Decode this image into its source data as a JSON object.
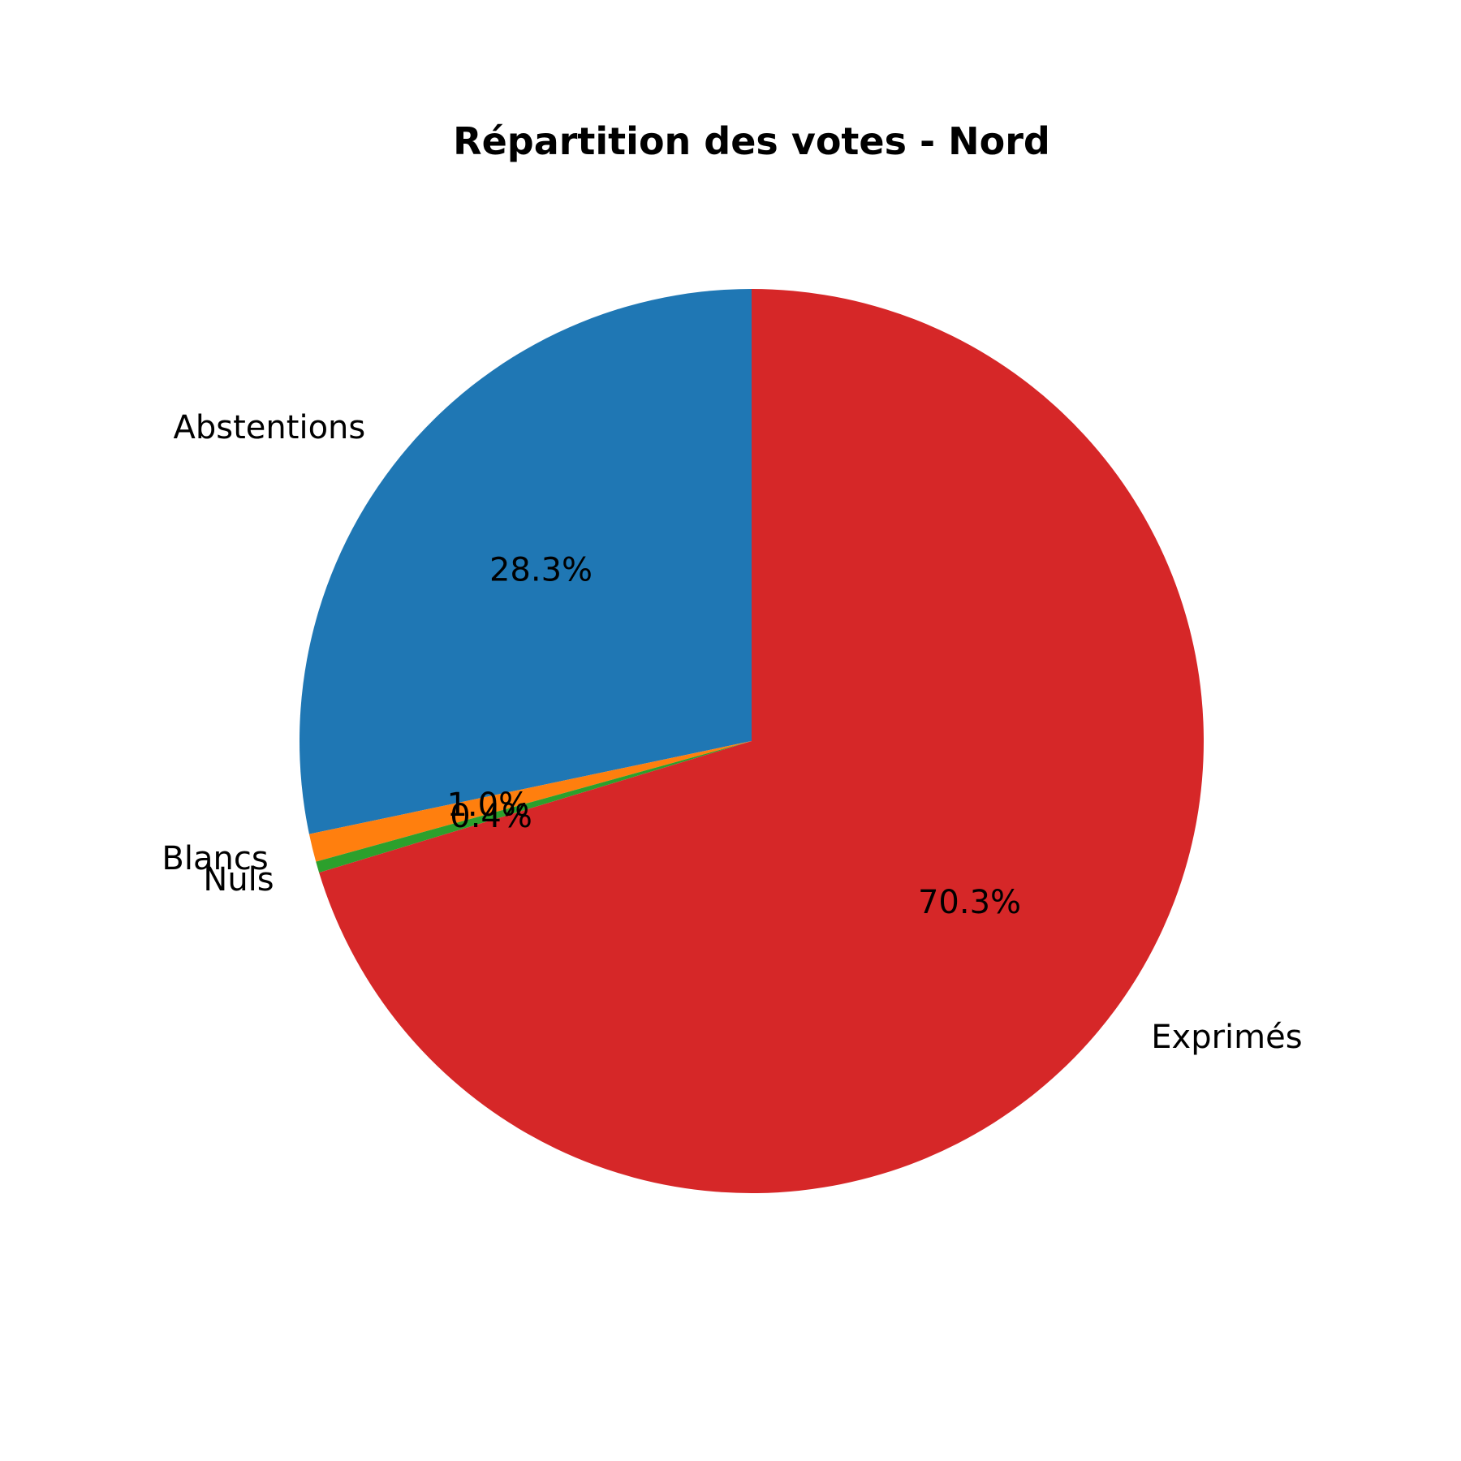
{
  "chart_data": {
    "type": "pie",
    "title": "Répartition des votes - Nord",
    "start_angle_deg": 90,
    "direction": "counterclockwise",
    "slices": [
      {
        "label": "Abstentions",
        "value": 28.3,
        "pct_label": "28.3%",
        "color": "#1f77b4"
      },
      {
        "label": "Blancs",
        "value": 1.0,
        "pct_label": "1.0%",
        "color": "#ff7f0e"
      },
      {
        "label": "Nuls",
        "value": 0.4,
        "pct_label": "0.4%",
        "color": "#2ca02c"
      },
      {
        "label": "Exprimés",
        "value": 70.3,
        "pct_label": "70.3%",
        "color": "#d62728"
      }
    ]
  }
}
